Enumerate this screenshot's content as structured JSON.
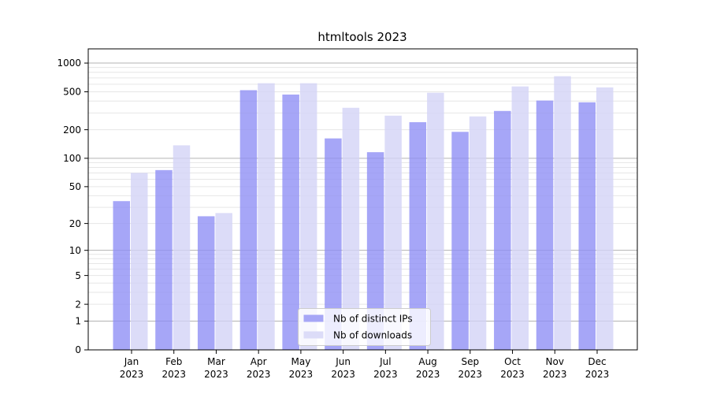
{
  "chart_data": {
    "type": "bar",
    "title": "htmltools 2023",
    "categories": [
      "Jan",
      "Feb",
      "Mar",
      "Apr",
      "May",
      "Jun",
      "Jul",
      "Aug",
      "Sep",
      "Oct",
      "Nov",
      "Dec"
    ],
    "x_year": "2023",
    "series": [
      {
        "name": "Nb of distinct IPs",
        "color": "#a6a6f6",
        "bar_fill": "rgba(141,141,245,0.78)",
        "values": [
          35,
          75,
          24,
          520,
          468,
          162,
          116,
          240,
          190,
          315,
          405,
          388
        ]
      },
      {
        "name": "Nb of downloads",
        "color": "#dcdcf8",
        "bar_fill": "rgba(210,210,246,0.78)",
        "values": [
          70,
          137,
          26,
          615,
          615,
          340,
          281,
          489,
          276,
          569,
          729,
          556
        ]
      }
    ],
    "yscale": "log1p",
    "yticks": [
      0,
      1,
      2,
      5,
      10,
      20,
      50,
      100,
      200,
      500,
      1000
    ],
    "ylim": [
      0,
      1410
    ],
    "grid": true,
    "major_grid_values": [
      1,
      10,
      100,
      1000
    ],
    "major_grid_color": "#b3b3b3",
    "minor_grid_color": "#e6e6e6",
    "axis_color": "#000000",
    "legend_position": "lower center"
  }
}
